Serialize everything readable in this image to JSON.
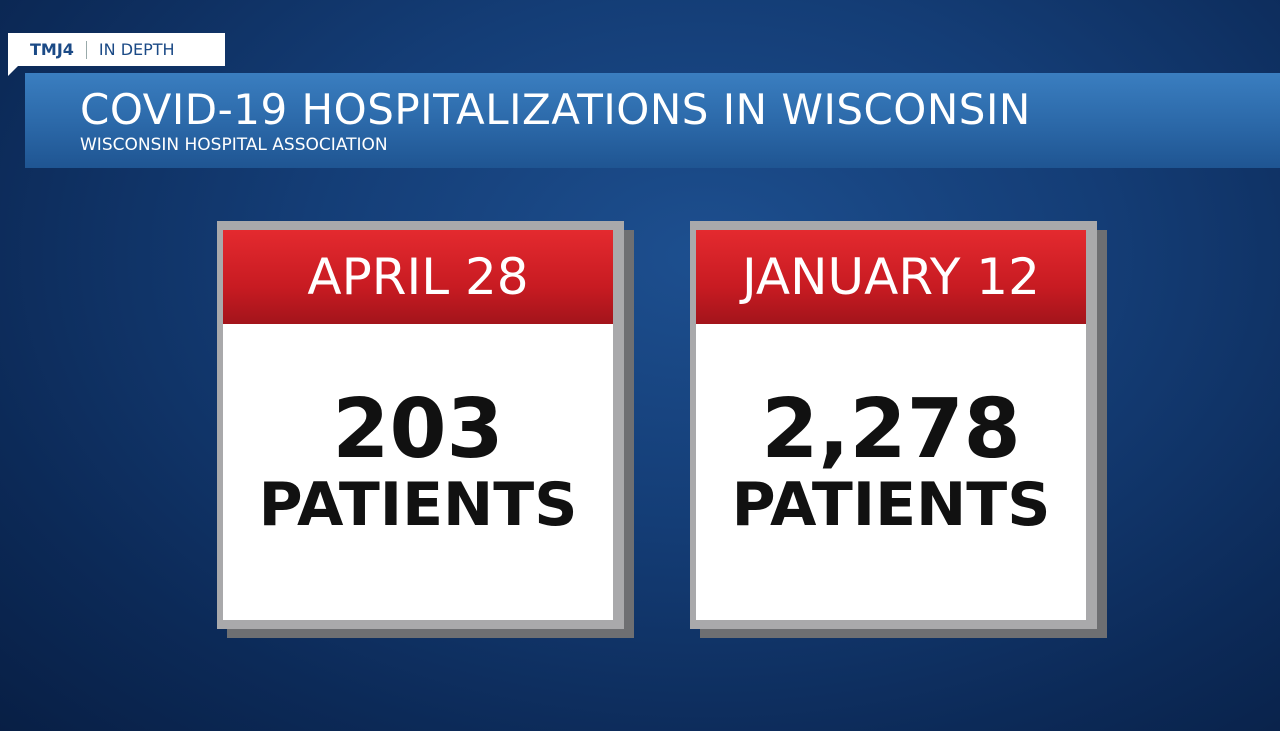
{
  "header": {
    "brand": "TMJ4",
    "section": "IN DEPTH",
    "title": "COVID-19 HOSPITALIZATIONS IN WISCONSIN",
    "subtitle": "WISCONSIN HOSPITAL ASSOCIATION"
  },
  "cards": [
    {
      "date": "APRIL 28",
      "count": "203",
      "unit": "PATIENTS"
    },
    {
      "date": "JANUARY 12",
      "count": "2,278",
      "unit": "PATIENTS"
    }
  ]
}
